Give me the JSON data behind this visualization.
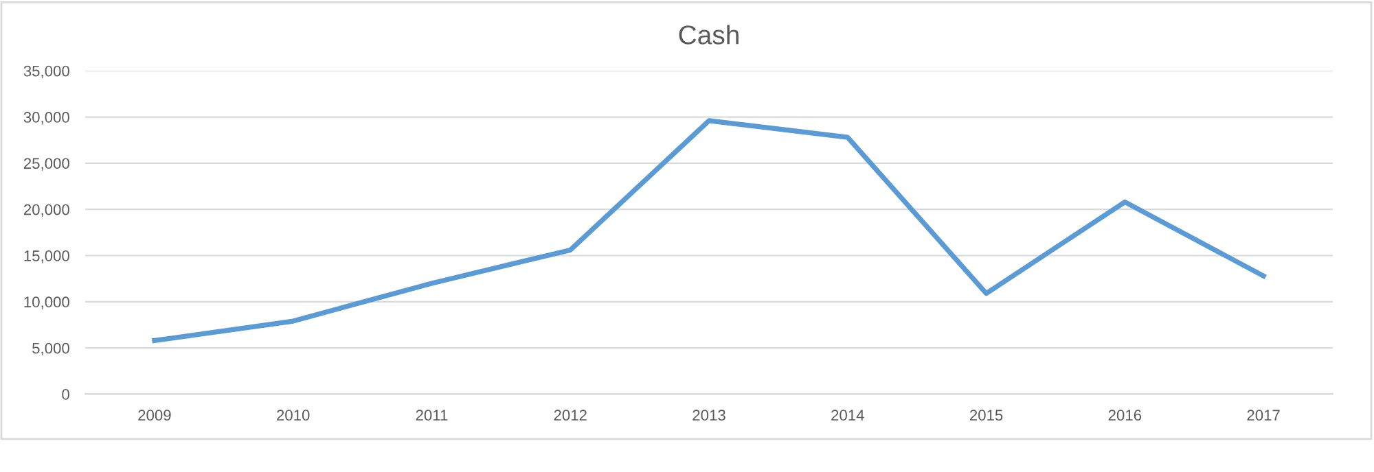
{
  "chart_data": {
    "type": "line",
    "title": "Cash",
    "categories": [
      "2009",
      "2010",
      "2011",
      "2012",
      "2013",
      "2014",
      "2015",
      "2016",
      "2017"
    ],
    "series": [
      {
        "color": "#5b9bd5",
        "values": [
          5800,
          7900,
          12000,
          15600,
          29600,
          27800,
          10900,
          20800,
          12800
        ]
      }
    ],
    "ylim": [
      0,
      35000
    ],
    "yticks": [
      {
        "value": 0,
        "label": "0"
      },
      {
        "value": 5000,
        "label": "5,000"
      },
      {
        "value": 10000,
        "label": "10,000"
      },
      {
        "value": 15000,
        "label": "15,000"
      },
      {
        "value": 20000,
        "label": "20,000"
      },
      {
        "value": 25000,
        "label": "25,000"
      },
      {
        "value": 30000,
        "label": "30,000"
      },
      {
        "value": 35000,
        "label": "35,000"
      }
    ],
    "grid": "y",
    "legend": false,
    "marker": "none",
    "line_style": "solid"
  }
}
